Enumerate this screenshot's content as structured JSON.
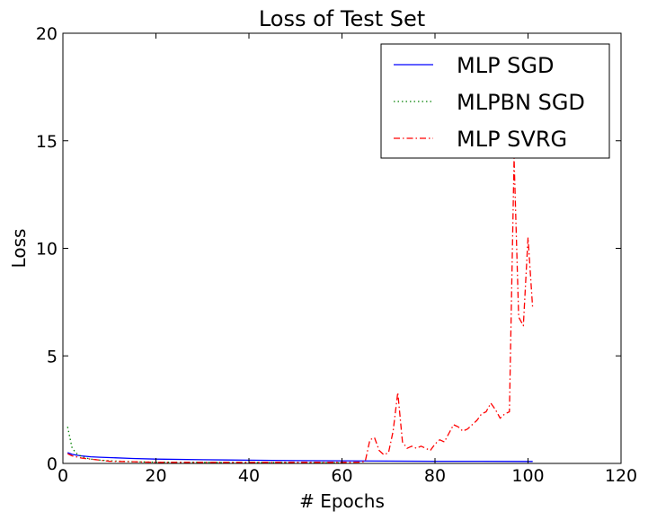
{
  "chart_data": {
    "type": "line",
    "title": "Loss of Test Set",
    "xlabel": "# Epochs",
    "ylabel": "Loss",
    "xlim": [
      0,
      120
    ],
    "ylim": [
      0,
      20
    ],
    "xticks": [
      "0",
      "20",
      "40",
      "60",
      "80",
      "100",
      "120"
    ],
    "yticks": [
      "0",
      "5",
      "10",
      "15",
      "20"
    ],
    "grid": false,
    "legend": "top-right",
    "series": [
      {
        "name": "MLP SGD",
        "color": "#0000ff",
        "style": "solid",
        "x": [
          1,
          2,
          3,
          4,
          5,
          6,
          8,
          10,
          15,
          20,
          30,
          40,
          50,
          60,
          70,
          80,
          90,
          101
        ],
        "y": [
          0.5,
          0.42,
          0.38,
          0.35,
          0.33,
          0.31,
          0.29,
          0.27,
          0.23,
          0.2,
          0.17,
          0.15,
          0.13,
          0.12,
          0.11,
          0.1,
          0.1,
          0.09
        ]
      },
      {
        "name": "MLPBN SGD",
        "color": "#008000",
        "style": "dotted",
        "x": [
          1,
          2,
          3,
          4,
          5,
          6,
          8,
          10,
          15,
          20,
          30,
          40,
          50,
          60
        ],
        "y": [
          1.7,
          0.7,
          0.45,
          0.32,
          0.25,
          0.2,
          0.15,
          0.12,
          0.08,
          0.06,
          0.05,
          0.04,
          0.04,
          0.03
        ]
      },
      {
        "name": "MLP SVRG",
        "color": "#ff0000",
        "style": "dashdot",
        "x": [
          1,
          2,
          3,
          4,
          5,
          6,
          8,
          10,
          15,
          20,
          25,
          30,
          35,
          40,
          45,
          50,
          55,
          60,
          62,
          64,
          65,
          66,
          67,
          68,
          69,
          70,
          71,
          72,
          73,
          74,
          75,
          76,
          77,
          78,
          79,
          80,
          81,
          82,
          83,
          84,
          85,
          86,
          87,
          88,
          89,
          90,
          91,
          92,
          93,
          94,
          95,
          96,
          97,
          98,
          99,
          100,
          101
        ],
        "y": [
          0.45,
          0.35,
          0.3,
          0.25,
          0.22,
          0.2,
          0.15,
          0.1,
          0.08,
          0.05,
          0.05,
          0.05,
          0.05,
          0.05,
          0.05,
          0.05,
          0.05,
          0.05,
          0.05,
          0.06,
          0.1,
          1.1,
          1.2,
          0.6,
          0.4,
          0.5,
          1.5,
          3.3,
          1.0,
          0.7,
          0.8,
          0.7,
          0.8,
          0.7,
          0.6,
          0.9,
          1.1,
          1.0,
          1.4,
          1.8,
          1.7,
          1.5,
          1.6,
          1.8,
          2.0,
          2.3,
          2.4,
          2.8,
          2.5,
          2.1,
          2.3,
          2.4,
          14.2,
          6.8,
          6.4,
          10.5,
          7.2
        ]
      }
    ]
  }
}
